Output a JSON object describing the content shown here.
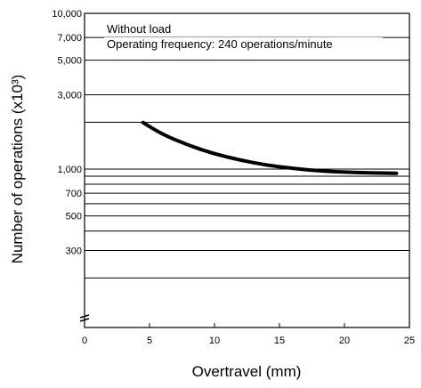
{
  "chart_data": {
    "type": "line",
    "xlabel": "Overtravel (mm)",
    "ylabel": "Number of operations  (x10³)",
    "xlim": [
      0,
      25
    ],
    "x_ticks": [
      0,
      5,
      10,
      15,
      20,
      25
    ],
    "y_scale": "log",
    "y_ticks": [
      {
        "value": 10000,
        "label": "10,000"
      },
      {
        "value": 7000,
        "label": "7,000"
      },
      {
        "value": 5000,
        "label": "5,000"
      },
      {
        "value": 3000,
        "label": "3,000"
      },
      {
        "value": 1000,
        "label": "1,000"
      },
      {
        "value": 700,
        "label": "700"
      },
      {
        "value": 500,
        "label": "500"
      },
      {
        "value": 300,
        "label": "300"
      }
    ],
    "annotations": [
      "Without load",
      "Operating frequency: 240 operations/minute"
    ],
    "grid": true,
    "series": [
      {
        "x": [
          4.5,
          6,
          8,
          10,
          12,
          14,
          16,
          18,
          20,
          22,
          24
        ],
        "y": [
          1990,
          1670,
          1420,
          1250,
          1140,
          1060,
          1010,
          975,
          955,
          945,
          940
        ]
      }
    ]
  }
}
